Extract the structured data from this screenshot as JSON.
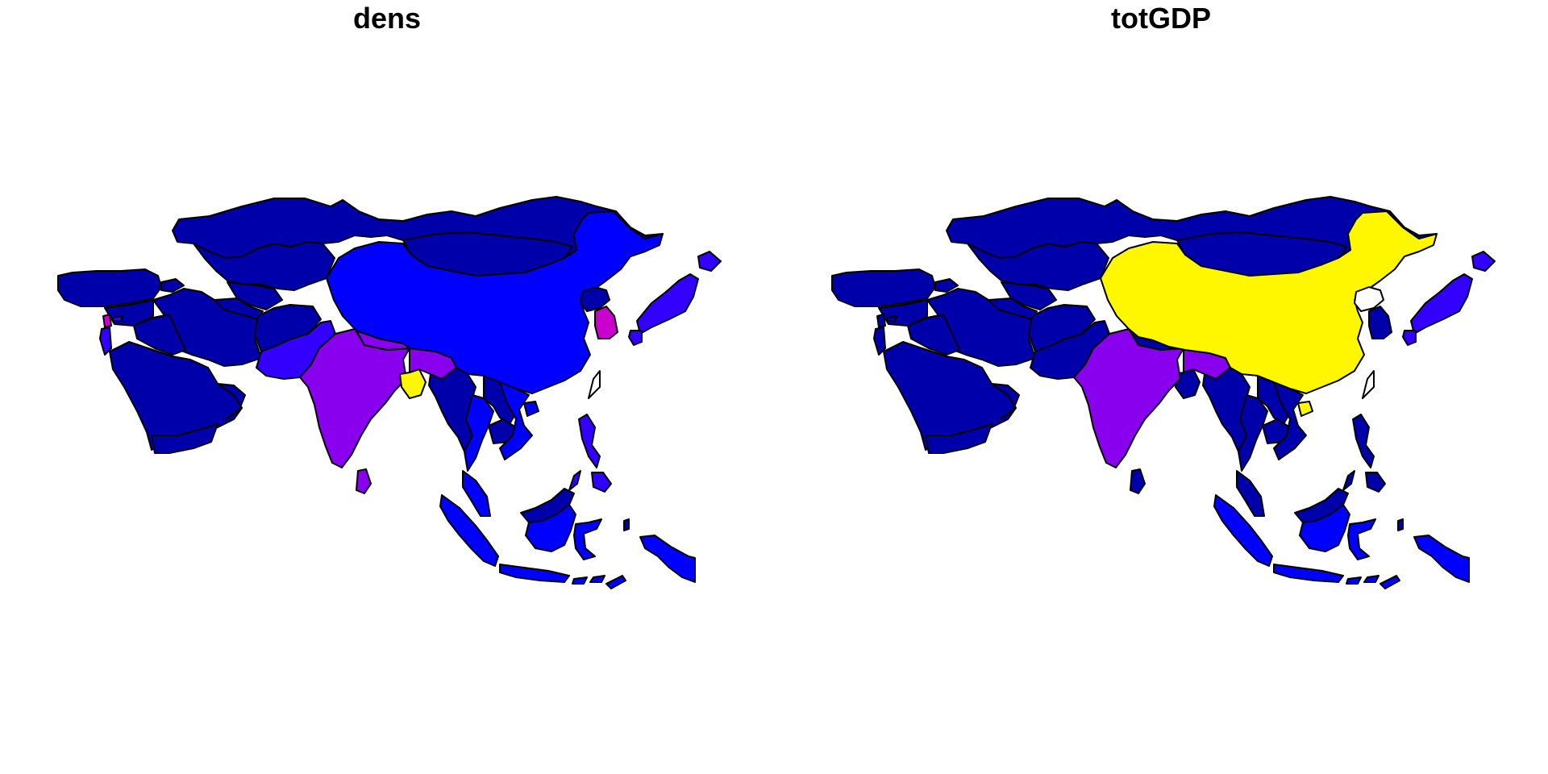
{
  "panels": [
    {
      "title": "dens"
    },
    {
      "title": "totGDP"
    }
  ],
  "palette": {
    "class_1": "#0000AA",
    "class_2": "#0000FF",
    "class_3": "#3300FF",
    "class_4": "#8800EE",
    "class_5": "#CC00CC",
    "class_6": "#FFF700",
    "none": "#FFFFFF"
  },
  "maps": [
    {
      "variable": "dens",
      "countries": {
        "russia": "class_1",
        "kazakhstan": "class_1",
        "turkey": "class_1",
        "caucasus": "class_1",
        "iran": "class_1",
        "iraq": "class_1",
        "syria": "class_1",
        "arabia": "class_1",
        "yemen": "class_1",
        "oman": "class_1",
        "uzbekistan": "class_1",
        "turkmenistan": "class_1",
        "afghanistan": "class_1",
        "mongolia": "class_1",
        "myanmar": "class_1",
        "laos": "class_1",
        "cambodia": "class_1",
        "borneo_north": "class_1",
        "png": "class_1",
        "china": "class_2",
        "thailand": "class_2",
        "vietnam": "class_2",
        "malaysia": "class_2",
        "sumatra": "class_2",
        "java": "class_2",
        "borneo_south": "class_2",
        "sulawesi": "class_2",
        "lesser_sunda": "class_2",
        "timor": "class_2",
        "hainan": "class_2",
        "papua": "class_2",
        "pakistan": "class_3",
        "japan_main": "class_3",
        "hokkaido": "class_3",
        "kyushu": "class_3",
        "philippines_n": "class_3",
        "philippines_s": "class_3",
        "cyprus": "class_3",
        "israel": "class_3",
        "india": "class_4",
        "nepal": "class_4",
        "sri_lanka": "class_4",
        "ne_india": "class_4",
        "south_korea": "class_5",
        "lebanon": "class_5",
        "bangladesh": "class_6",
        "north_korea": "class_1",
        "taiwan": "none"
      }
    },
    {
      "variable": "totGDP",
      "countries": {
        "russia": "class_1",
        "kazakhstan": "class_1",
        "turkey": "class_1",
        "caucasus": "class_1",
        "iran": "class_1",
        "iraq": "class_1",
        "syria": "class_1",
        "arabia": "class_1",
        "yemen": "class_1",
        "oman": "class_1",
        "uzbekistan": "class_1",
        "turkmenistan": "class_1",
        "afghanistan": "class_1",
        "mongolia": "class_1",
        "myanmar": "class_1",
        "laos": "class_1",
        "cambodia": "class_1",
        "borneo_north": "class_1",
        "png": "class_1",
        "pakistan": "class_1",
        "nepal": "class_1",
        "bangladesh": "class_1",
        "thailand": "class_1",
        "vietnam": "class_1",
        "malaysia": "class_1",
        "sri_lanka": "class_1",
        "philippines_n": "class_1",
        "philippines_s": "class_1",
        "south_korea": "class_1",
        "cyprus": "class_1",
        "israel": "class_1",
        "lebanon": "class_1",
        "sumatra": "class_2",
        "java": "class_2",
        "borneo_south": "class_2",
        "sulawesi": "class_2",
        "lesser_sunda": "class_2",
        "timor": "class_2",
        "papua": "class_2",
        "japan_main": "class_3",
        "hokkaido": "class_3",
        "kyushu": "class_3",
        "india": "class_4",
        "ne_india": "class_4",
        "china": "class_6",
        "hainan": "class_6",
        "north_korea": "none",
        "taiwan": "none"
      }
    }
  ]
}
